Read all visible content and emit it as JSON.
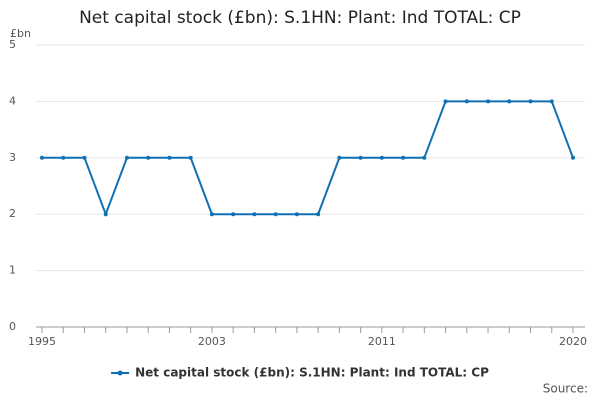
{
  "chart_data": {
    "type": "line",
    "title": "Net capital stock (£bn): S.1HN: Plant: Ind TOTAL: CP",
    "y_label": "£bn",
    "source": "Source:",
    "x": [
      1995,
      1996,
      1997,
      1998,
      1999,
      2000,
      2001,
      2002,
      2003,
      2004,
      2005,
      2006,
      2007,
      2008,
      2009,
      2010,
      2011,
      2012,
      2013,
      2014,
      2015,
      2016,
      2017,
      2018,
      2019,
      2020
    ],
    "series": [
      {
        "name": "Net capital stock (£bn): S.1HN: Plant: Ind TOTAL: CP",
        "color": "#0f71b4",
        "values": [
          3,
          3,
          3,
          2,
          3,
          3,
          3,
          3,
          2,
          2,
          2,
          2,
          2,
          2,
          3,
          3,
          3,
          3,
          3,
          4,
          4,
          4,
          4,
          4,
          4,
          3
        ]
      }
    ],
    "xlim": [
      1995,
      2020
    ],
    "xticks": [
      1995,
      2003,
      2011,
      2020
    ],
    "ylim": [
      0,
      5
    ],
    "yticks": [
      0,
      1,
      2,
      3,
      4,
      5
    ],
    "grid": true,
    "legend": "bottom"
  }
}
